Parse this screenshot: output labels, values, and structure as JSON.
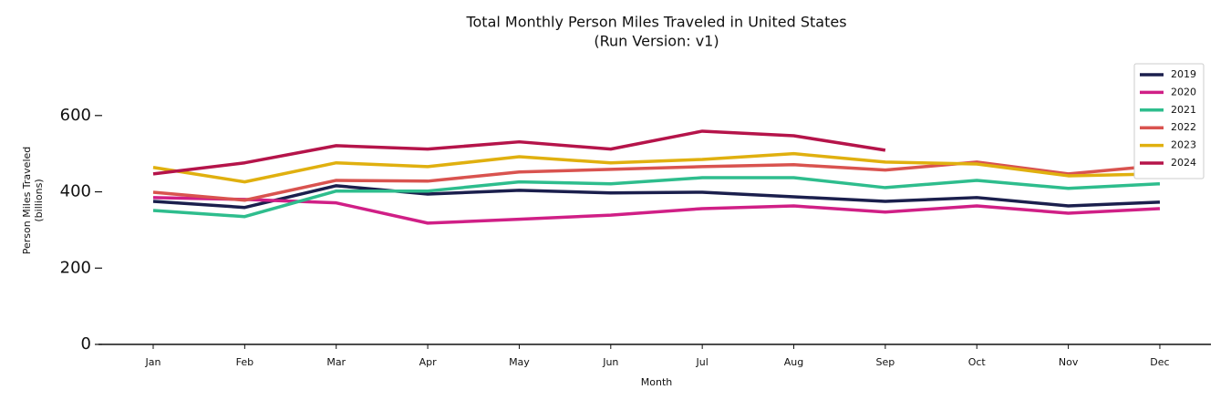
{
  "chart_data": {
    "type": "line",
    "title": "Total Monthly Person Miles Traveled in United States",
    "subtitle": "(Run Version: v1)",
    "xlabel": "Month",
    "ylabel": "Person Miles Traveled",
    "ylabel_unit": "(billions)",
    "categories": [
      "Jan",
      "Feb",
      "Mar",
      "Apr",
      "May",
      "Jun",
      "Jul",
      "Aug",
      "Sep",
      "Oct",
      "Nov",
      "Dec"
    ],
    "series": [
      {
        "name": "2019",
        "color": "#1b1f4d",
        "values": [
          375,
          359,
          416,
          394,
          404,
          397,
          399,
          387,
          375,
          385,
          363,
          373
        ]
      },
      {
        "name": "2020",
        "color": "#d01f86",
        "values": [
          385,
          380,
          371,
          318,
          328,
          339,
          356,
          363,
          347,
          363,
          344,
          356
        ]
      },
      {
        "name": "2021",
        "color": "#2ebd8d",
        "values": [
          351,
          335,
          402,
          402,
          426,
          421,
          437,
          437,
          411,
          430,
          409,
          421
        ]
      },
      {
        "name": "2022",
        "color": "#d9534f",
        "values": [
          399,
          378,
          430,
          428,
          452,
          459,
          466,
          471,
          457,
          478,
          447,
          469
        ]
      },
      {
        "name": "2023",
        "color": "#e0b00f",
        "values": [
          464,
          426,
          476,
          466,
          492,
          476,
          485,
          500,
          478,
          473,
          442,
          447
        ]
      },
      {
        "name": "2024",
        "color": "#b5144a",
        "values": [
          447,
          476,
          521,
          512,
          531,
          512,
          559,
          547,
          509,
          null,
          null,
          null
        ]
      }
    ],
    "ylim": [
      0,
      750
    ],
    "yticks": [
      0,
      200,
      400,
      600
    ],
    "legend": "upper right",
    "grid": false
  }
}
